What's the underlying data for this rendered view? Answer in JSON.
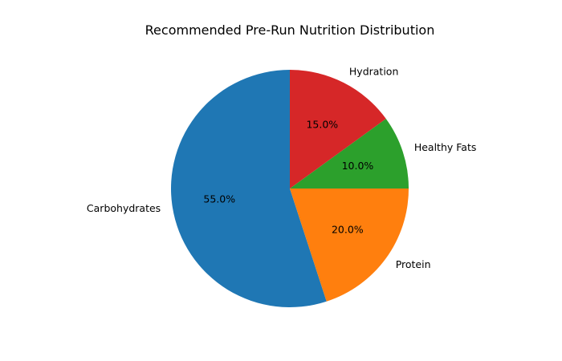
{
  "chart_data": {
    "type": "pie",
    "title": "Recommended Pre-Run Nutrition Distribution",
    "categories": [
      "Carbohydrates",
      "Protein",
      "Healthy Fats",
      "Hydration"
    ],
    "values": [
      55,
      20,
      10,
      15
    ],
    "percent_labels": [
      "55.0%",
      "20.0%",
      "10.0%",
      "15.0%"
    ],
    "colors": [
      "#1f77b4",
      "#ff7f0e",
      "#2ca02c",
      "#d62728"
    ],
    "start_angle": 90,
    "direction": "counterclockwise",
    "legend": false
  }
}
